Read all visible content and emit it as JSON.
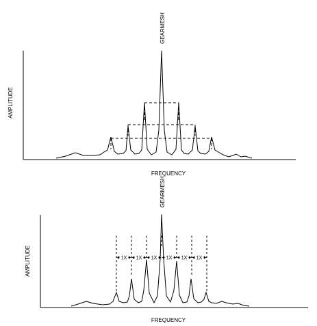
{
  "top_diagram": {
    "peak_label": "GEARMESH",
    "x_axis_label": "FREQUENCY",
    "y_axis_label": "AMPLITUDE"
  },
  "bottom_diagram": {
    "peak_label": "GEARMESH",
    "x_axis_label": "FREQUENCY",
    "y_axis_label": "AMPLITUDE",
    "spacing_labels": [
      "1X",
      "1X",
      "1X",
      "1X",
      "1X",
      "1X"
    ]
  }
}
